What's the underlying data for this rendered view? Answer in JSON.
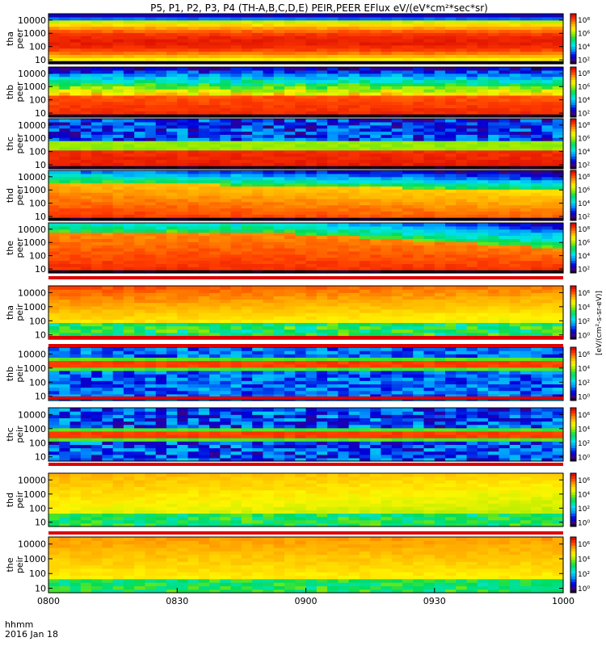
{
  "title": "P5, P1, P2, P3, P4 (TH-A,B,C,D,E) PEIR,PEER EFlux eV/(eV*cm²*sec*sr)",
  "time_caption": "hhmm",
  "date_caption": "2016 Jan 18",
  "colorbar_unit": "[eV/(cm²-s-sr-eV)]",
  "chart_data": {
    "type": "heatmap",
    "title": "P5, P1, P2, P3, P4 (TH-A,B,C,D,E) PEIR,PEER EFlux eV/(eV*cm²*sec*sr)",
    "x_tick_labels": [
      "0800",
      "0830",
      "0900",
      "0930",
      "1000"
    ],
    "x_range": [
      "08:00",
      "10:00"
    ],
    "y_scale": "log",
    "y_range_eV": [
      5,
      30000
    ],
    "y_tick_labels": [
      "10",
      "100",
      "1000",
      "10000"
    ],
    "colorbar_scale": "log",
    "colormap": "rainbow",
    "panels": [
      {
        "name": "tha peer",
        "probe": "tha",
        "species": "peer",
        "cbar_ticks": [
          "10²",
          "10⁴",
          "10⁶",
          "10⁸"
        ],
        "cbar_range": [
          30,
          1000000000.0
        ]
      },
      {
        "name": "thb peer",
        "probe": "thb",
        "species": "peer",
        "cbar_ticks": [
          "10²",
          "10⁴",
          "10⁶",
          "10⁸"
        ],
        "cbar_range": [
          30,
          1000000000.0
        ]
      },
      {
        "name": "thc peer",
        "probe": "thc",
        "species": "peer",
        "cbar_ticks": [
          "10²",
          "10⁴",
          "10⁶",
          "10⁸"
        ],
        "cbar_range": [
          30,
          1000000000.0
        ]
      },
      {
        "name": "thd peer",
        "probe": "thd",
        "species": "peer",
        "cbar_ticks": [
          "10²",
          "10⁴",
          "10⁶",
          "10⁸"
        ],
        "cbar_range": [
          30,
          1000000000.0
        ]
      },
      {
        "name": "the peer",
        "probe": "the",
        "species": "peer",
        "cbar_ticks": [
          "10²",
          "10⁴",
          "10⁶",
          "10⁸"
        ],
        "cbar_range": [
          30,
          1000000000.0
        ]
      },
      {
        "name": "tha peir",
        "probe": "tha",
        "species": "peir",
        "cbar_ticks": [
          "10⁰",
          "10²",
          "10⁴",
          "10⁶"
        ],
        "cbar_range": [
          0.3,
          10000000.0
        ]
      },
      {
        "name": "thb peir",
        "probe": "thb",
        "species": "peir",
        "cbar_ticks": [
          "10⁰",
          "10²",
          "10⁴",
          "10⁶"
        ],
        "cbar_range": [
          0.3,
          10000000.0
        ]
      },
      {
        "name": "thc peir",
        "probe": "thc",
        "species": "peir",
        "cbar_ticks": [
          "10⁰",
          "10²",
          "10⁴",
          "10⁶"
        ],
        "cbar_range": [
          0.3,
          10000000.0
        ]
      },
      {
        "name": "thd peir",
        "probe": "thd",
        "species": "peir",
        "cbar_ticks": [
          "10⁰",
          "10²",
          "10⁴",
          "10⁶"
        ],
        "cbar_range": [
          0.3,
          10000000.0
        ]
      },
      {
        "name": "the peir",
        "probe": "the",
        "species": "peir",
        "cbar_ticks": [
          "10⁰",
          "10²",
          "10⁴",
          "10⁶"
        ],
        "cbar_range": [
          0.3,
          10000000.0
        ]
      }
    ]
  }
}
